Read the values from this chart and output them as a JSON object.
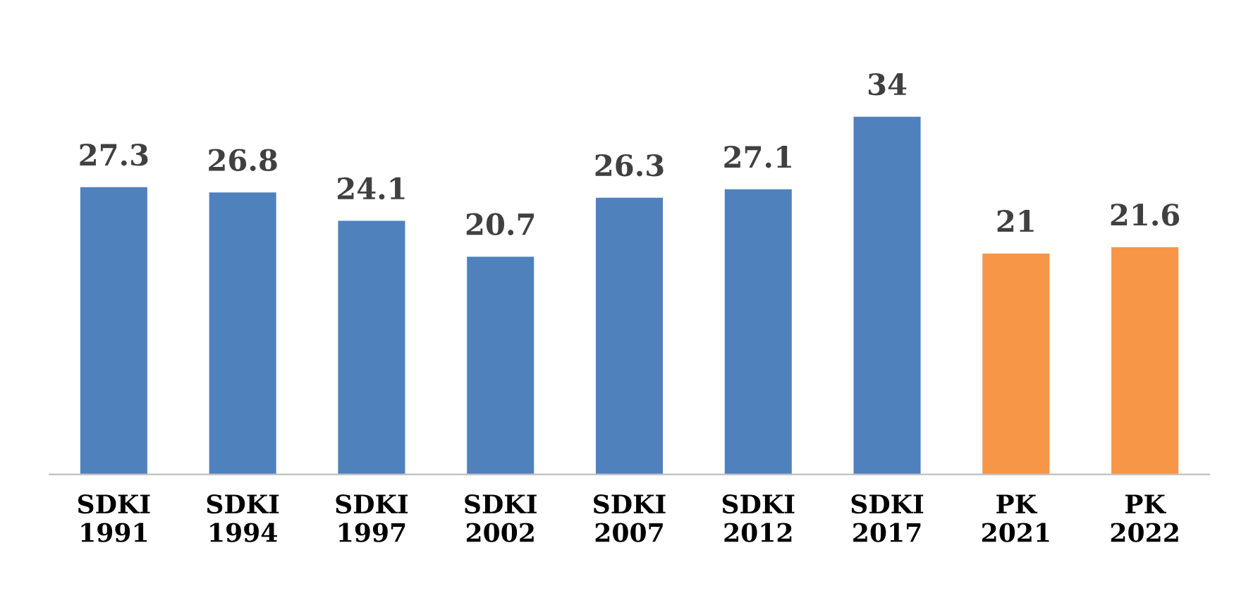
{
  "chart_data": {
    "type": "bar",
    "categories": [
      "SDKI\n1991",
      "SDKI\n1994",
      "SDKI\n1997",
      "SDKI\n2002",
      "SDKI\n2007",
      "SDKI\n2012",
      "SDKI\n2017",
      "PK\n2021",
      "PK\n2022"
    ],
    "values": [
      27.3,
      26.8,
      24.1,
      20.7,
      26.3,
      27.1,
      34,
      21,
      21.6
    ],
    "colors": [
      "#4f81bd",
      "#4f81bd",
      "#4f81bd",
      "#4f81bd",
      "#4f81bd",
      "#4f81bd",
      "#4f81bd",
      "#f79646",
      "#f79646"
    ],
    "data_labels": true,
    "tick_labels": "x"
  }
}
